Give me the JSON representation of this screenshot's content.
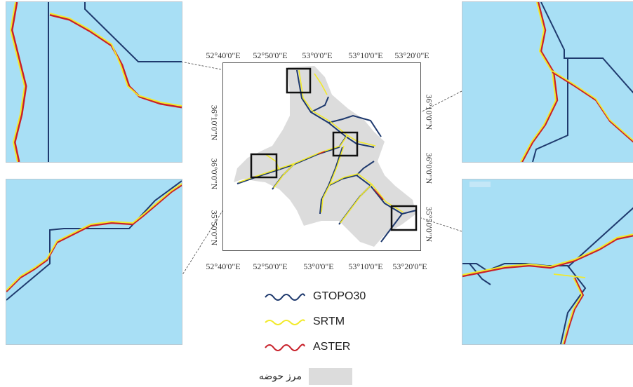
{
  "main_map": {
    "top_longitudes": [
      "52°40'0\"E",
      "52°50'0\"E",
      "53°0'0\"E",
      "53°10'0\"E",
      "53°20'0\"E"
    ],
    "bottom_longitudes": [
      "52°40'0\"E",
      "52°50'0\"E",
      "53°0'0\"E",
      "53°10'0\"E",
      "53°20'0\"E"
    ],
    "left_latitudes": [
      "36°10'0\"N",
      "36°0'0\"N",
      "35°50'0\"N"
    ],
    "right_latitudes": [
      "36°10'0\"N",
      "36°0'0\"N",
      "35°50'0\"N"
    ],
    "basin_fill_color": "#dcdcdc"
  },
  "legend": {
    "items": [
      {
        "label": "GTOPO30",
        "color": "#1f3a6e"
      },
      {
        "label": "SRTM",
        "color": "#f2ea2a"
      },
      {
        "label": "ASTER",
        "color": "#c8202a"
      }
    ],
    "basin_label": "مرز حوضه"
  },
  "colors": {
    "water_background": "#a8dff5",
    "frame": "#111111"
  }
}
